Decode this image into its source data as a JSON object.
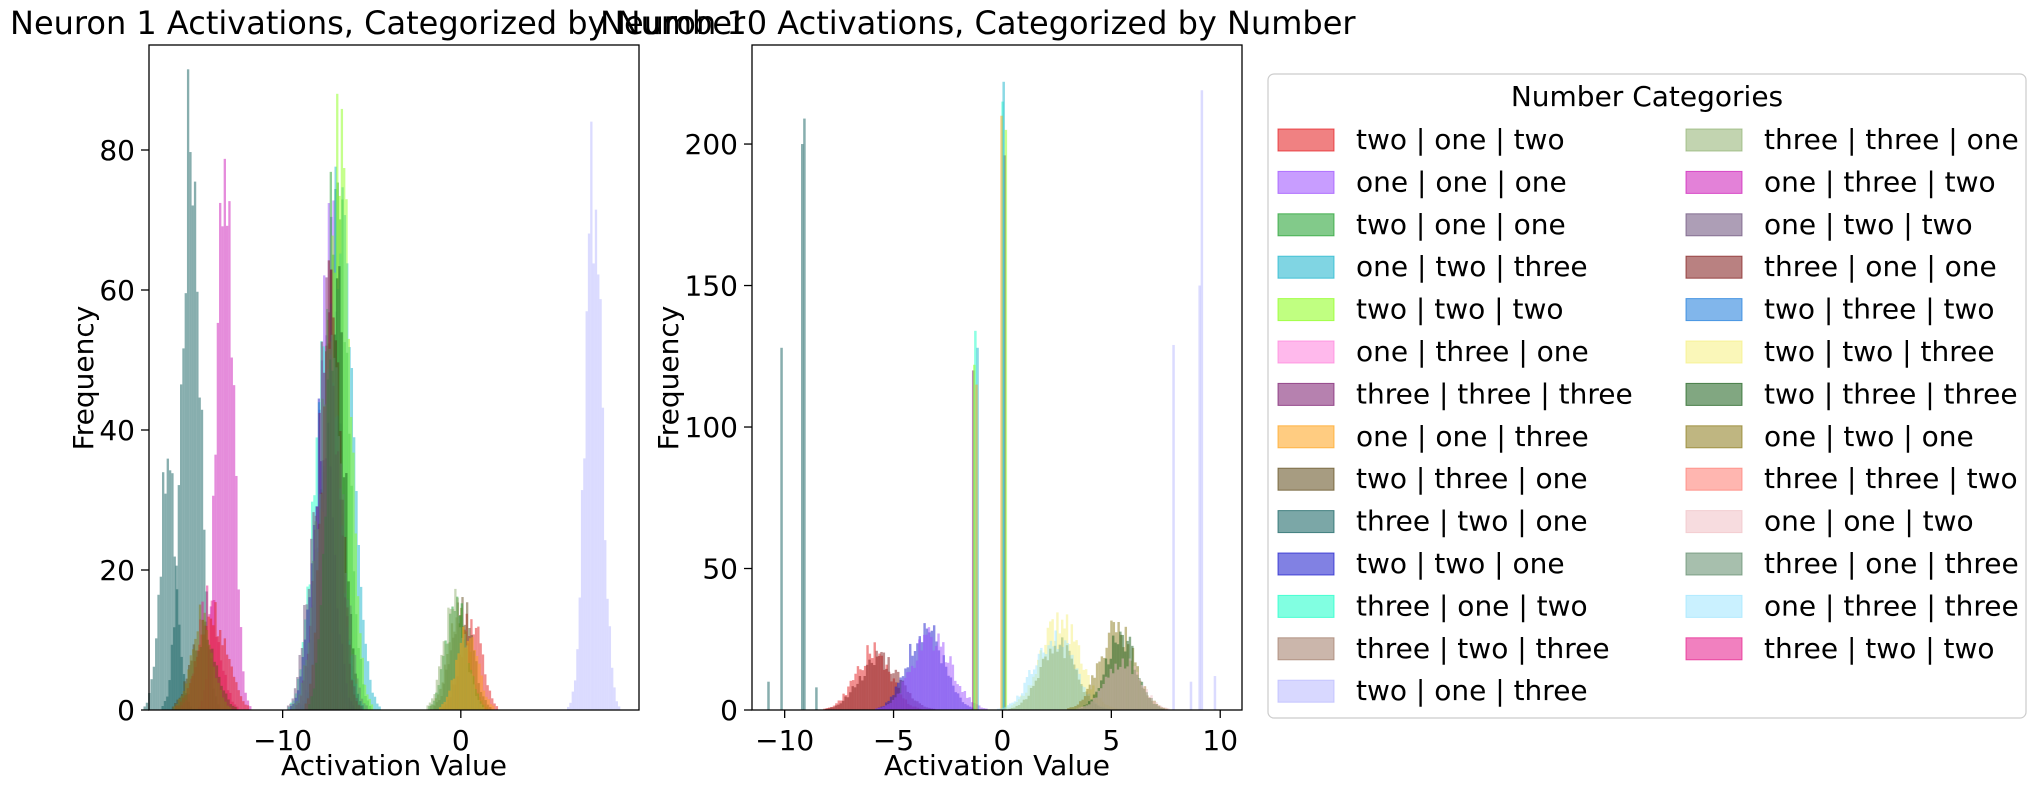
{
  "colors": {
    "two | one | two": "#e41a1c",
    "one | one | one": "#9b4dff",
    "two | one | one": "#1b9e2a",
    "one | two | three": "#17b3cc",
    "two | two | two": "#8cff1a",
    "one | three | one": "#ff80dc",
    "three | three | three": "#7a1a6e",
    "one | one | three": "#ffa31a",
    "two | three | one": "#5e4a1a",
    "three | two | one": "#0f5e5e",
    "two | two | one": "#1a1acc",
    "three | one | two": "#1affc8",
    "three | two | three": "#a07a66",
    "two | one | three": "#b8b8ff",
    "three | three | one": "#8fb070",
    "one | three | two": "#cc1ab8",
    "one | two | two": "#6a4f7a",
    "three | one | one": "#801a1a",
    "two | three | two": "#1a7adb",
    "two | two | three": "#f5f080",
    "two | three | three": "#1a5e1a",
    "one | two | one": "#8a7a1a",
    "three | three | two": "#ff7a70",
    "one | one | two": "#f0c0c4",
    "three | one | three": "#5e8a6a",
    "one | three | three": "#9ee6ff",
    "three | two | two": "#e6188a"
  },
  "chart_data": [
    {
      "type": "histogram",
      "title": "Neuron 1 Activations, Categorized by Number",
      "xlabel": "Activation Value",
      "ylabel": "Frequency",
      "xlim": [
        -17.5,
        10.0
      ],
      "ylim": [
        0,
        95
      ],
      "xticks": [
        -10,
        0
      ],
      "xtick_labels": [
        "−10",
        "0"
      ],
      "yticks": [
        0,
        20,
        40,
        60,
        80
      ],
      "ytick_labels": [
        "0",
        "20",
        "40",
        "60",
        "80"
      ],
      "grid": false,
      "bin_width": 0.13,
      "series": [
        {
          "name": "three | two | one",
          "modes": [
            {
              "center": -15.2,
              "sd": 0.5,
              "peak": 90,
              "w": 0.7
            },
            {
              "center": -16.5,
              "sd": 0.45,
              "peak": 37,
              "w": 0.3
            }
          ]
        },
        {
          "name": "one | three | two",
          "modes": [
            {
              "center": -13.3,
              "sd": 0.45,
              "peak": 88
            }
          ]
        },
        {
          "name": "three | two | two",
          "modes": [
            {
              "center": -14.2,
              "sd": 0.6,
              "peak": 17
            }
          ]
        },
        {
          "name": "two | one | two",
          "modes": [
            {
              "center": -14.0,
              "sd": 0.8,
              "peak": 15
            },
            {
              "center": 0.5,
              "sd": 0.6,
              "peak": 14
            }
          ]
        },
        {
          "name": "two | three | one",
          "modes": [
            {
              "center": -14.5,
              "sd": 0.7,
              "peak": 12
            },
            {
              "center": 0.0,
              "sd": 0.6,
              "peak": 16
            }
          ]
        },
        {
          "name": "one | two | one",
          "modes": [
            {
              "center": -14.6,
              "sd": 0.6,
              "peak": 14
            },
            {
              "center": -0.2,
              "sd": 0.6,
              "peak": 15
            }
          ]
        },
        {
          "name": "one | one | one",
          "modes": [
            {
              "center": -7.4,
              "sd": 0.55,
              "peak": 72
            }
          ]
        },
        {
          "name": "two | one | one",
          "modes": [
            {
              "center": -7.0,
              "sd": 0.6,
              "peak": 86
            },
            {
              "center": -0.3,
              "sd": 0.6,
              "peak": 16
            }
          ]
        },
        {
          "name": "one | two | three",
          "modes": [
            {
              "center": -6.8,
              "sd": 0.7,
              "peak": 82
            }
          ]
        },
        {
          "name": "two | two | two",
          "modes": [
            {
              "center": -6.9,
              "sd": 0.6,
              "peak": 88
            }
          ]
        },
        {
          "name": "three | one | two",
          "modes": [
            {
              "center": -7.6,
              "sd": 0.7,
              "peak": 58
            }
          ]
        },
        {
          "name": "two | two | one",
          "modes": [
            {
              "center": -7.8,
              "sd": 0.6,
              "peak": 45
            }
          ]
        },
        {
          "name": "three | three | three",
          "modes": [
            {
              "center": -7.5,
              "sd": 0.6,
              "peak": 60
            }
          ]
        },
        {
          "name": "one | two | two",
          "modes": [
            {
              "center": -8.1,
              "sd": 0.6,
              "peak": 30
            }
          ]
        },
        {
          "name": "three | one | one",
          "modes": [
            {
              "center": -7.3,
              "sd": 0.5,
              "peak": 70
            }
          ]
        },
        {
          "name": "two | three | three",
          "modes": [
            {
              "center": -7.1,
              "sd": 0.5,
              "peak": 65
            }
          ]
        },
        {
          "name": "three | one | three",
          "modes": [
            {
              "center": -7.4,
              "sd": 0.7,
              "peak": 55
            }
          ]
        },
        {
          "name": "three | three | one",
          "modes": [
            {
              "center": -0.4,
              "sd": 0.6,
              "peak": 17
            }
          ]
        },
        {
          "name": "one | one | three",
          "modes": [
            {
              "center": 0.3,
              "sd": 0.6,
              "peak": 12
            }
          ]
        },
        {
          "name": "two | one | three",
          "modes": [
            {
              "center": 7.4,
              "sd": 0.45,
              "peak": 84
            }
          ]
        }
      ]
    },
    {
      "type": "histogram",
      "title": "Neuron 10 Activations, Categorized by Number",
      "xlabel": "Activation Value",
      "ylabel": "Frequency",
      "xlim": [
        -11.5,
        11.0
      ],
      "ylim": [
        0,
        235
      ],
      "xticks": [
        -10,
        -5,
        0,
        5,
        10
      ],
      "xtick_labels": [
        "−10",
        "−5",
        "0",
        "5",
        "10"
      ],
      "yticks": [
        0,
        50,
        100,
        150,
        200
      ],
      "ytick_labels": [
        "0",
        "50",
        "100",
        "150",
        "200"
      ],
      "grid": false,
      "bin_width": 0.11,
      "series": [
        {
          "name": "three | two | one",
          "spikes": [
            {
              "x": -10.2,
              "h": 128
            },
            {
              "x": -9.25,
              "h": 200
            },
            {
              "x": -9.15,
              "h": 209
            },
            {
              "x": -10.8,
              "h": 10
            },
            {
              "x": -8.6,
              "h": 8
            }
          ]
        },
        {
          "name": "two | one | two",
          "modes": [
            {
              "center": -6.0,
              "sd": 0.8,
              "peak": 22
            }
          ]
        },
        {
          "name": "three | one | one",
          "modes": [
            {
              "center": -5.7,
              "sd": 0.9,
              "peak": 20
            }
          ]
        },
        {
          "name": "two | two | one",
          "modes": [
            {
              "center": -3.6,
              "sd": 0.8,
              "peak": 32
            }
          ]
        },
        {
          "name": "one | one | one",
          "modes": [
            {
              "center": -3.3,
              "sd": 0.9,
              "peak": 28
            }
          ]
        },
        {
          "name": "three | three | three",
          "spikes": [
            {
              "x": -1.4,
              "h": 120
            },
            {
              "x": 0.05,
              "h": 196
            }
          ]
        },
        {
          "name": "three | one | two",
          "spikes": [
            {
              "x": -1.3,
              "h": 134
            },
            {
              "x": -0.05,
              "h": 215
            }
          ]
        },
        {
          "name": "one | two | three",
          "spikes": [
            {
              "x": -1.2,
              "h": 128
            },
            {
              "x": 0.0,
              "h": 222
            }
          ]
        },
        {
          "name": "two | two | two",
          "spikes": [
            {
              "x": -1.35,
              "h": 122
            },
            {
              "x": 0.1,
              "h": 205
            }
          ]
        },
        {
          "name": "one | one | three",
          "spikes": [
            {
              "x": -1.25,
              "h": 115
            },
            {
              "x": -0.1,
              "h": 210
            }
          ]
        },
        {
          "name": "two | two | three",
          "modes": [
            {
              "center": 2.6,
              "sd": 0.9,
              "peak": 33
            }
          ]
        },
        {
          "name": "one | three | three",
          "modes": [
            {
              "center": 2.3,
              "sd": 0.9,
              "peak": 28
            }
          ]
        },
        {
          "name": "three | three | one",
          "modes": [
            {
              "center": 2.5,
              "sd": 0.8,
              "peak": 25
            }
          ]
        },
        {
          "name": "one | two | one",
          "modes": [
            {
              "center": 5.2,
              "sd": 0.8,
              "peak": 31
            }
          ]
        },
        {
          "name": "two | three | three",
          "modes": [
            {
              "center": 5.4,
              "sd": 0.7,
              "peak": 28
            }
          ]
        },
        {
          "name": "one | one | two",
          "modes": [
            {
              "center": 5.5,
              "sd": 0.8,
              "peak": 18
            }
          ]
        },
        {
          "name": "two | one | three",
          "spikes": [
            {
              "x": 7.8,
              "h": 129
            },
            {
              "x": 9.1,
              "h": 219
            },
            {
              "x": 9.0,
              "h": 150
            },
            {
              "x": 8.6,
              "h": 10
            },
            {
              "x": 9.7,
              "h": 12
            }
          ]
        }
      ]
    }
  ],
  "legend": {
    "title": "Number Categories",
    "column1": [
      "two | one | two",
      "one | one | one",
      "two | one | one",
      "one | two | three",
      "two | two | two",
      "one | three | one",
      "three | three | three",
      "one | one | three",
      "two | three | one",
      "three | two | one",
      "two | two | one",
      "three | one | two",
      "three | two | three",
      "two | one | three"
    ],
    "column2": [
      "three | three | one",
      "one | three | two",
      "one | two | two",
      "three | one | one",
      "two | three | two",
      "two | two | three",
      "two | three | three",
      "one | two | one",
      "three | three | two",
      "one | one | two",
      "three | one | three",
      "one | three | three",
      "three | two | two"
    ]
  }
}
